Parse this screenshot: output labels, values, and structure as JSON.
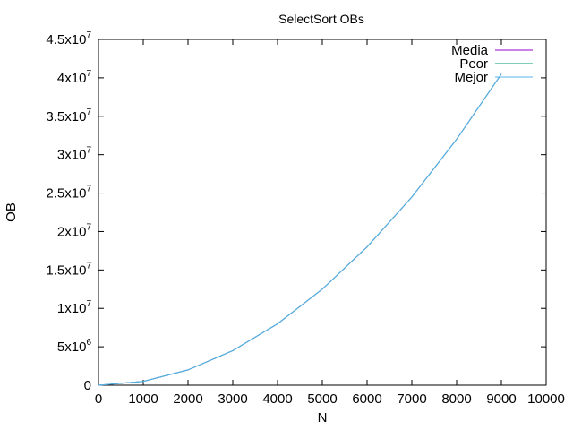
{
  "chart_data": {
    "type": "line",
    "title": "SelectSort OBs",
    "xlabel": "N",
    "ylabel": "OB",
    "xlim": [
      0,
      10000
    ],
    "ylim": [
      0,
      45000000
    ],
    "x_ticks": [
      0,
      1000,
      2000,
      3000,
      4000,
      5000,
      6000,
      7000,
      8000,
      9000,
      10000
    ],
    "y_ticks": [
      {
        "value": 0,
        "mantissa": "0",
        "exp": ""
      },
      {
        "value": 5000000,
        "mantissa": "5x10",
        "exp": "6"
      },
      {
        "value": 10000000,
        "mantissa": "1x10",
        "exp": "7"
      },
      {
        "value": 15000000,
        "mantissa": "1.5x10",
        "exp": "7"
      },
      {
        "value": 20000000,
        "mantissa": "2x10",
        "exp": "7"
      },
      {
        "value": 25000000,
        "mantissa": "2.5x10",
        "exp": "7"
      },
      {
        "value": 30000000,
        "mantissa": "3x10",
        "exp": "7"
      },
      {
        "value": 35000000,
        "mantissa": "3.5x10",
        "exp": "7"
      },
      {
        "value": 40000000,
        "mantissa": "4x10",
        "exp": "7"
      },
      {
        "value": 45000000,
        "mantissa": "4.5x10",
        "exp": "7"
      }
    ],
    "grid": false,
    "legend_position": "top-right",
    "x": [
      0,
      1000,
      2000,
      3000,
      4000,
      5000,
      6000,
      7000,
      8000,
      9000
    ],
    "series": [
      {
        "name": "Media",
        "color": "#9400d3",
        "values": [
          0,
          499500,
          1999000,
          4498500,
          7998000,
          12497500,
          17997000,
          24496500,
          31996000,
          40495500
        ]
      },
      {
        "name": "Peor",
        "color": "#009e73",
        "values": [
          0,
          499500,
          1999000,
          4498500,
          7998000,
          12497500,
          17997000,
          24496500,
          31996000,
          40495500
        ]
      },
      {
        "name": "Mejor",
        "color": "#56b4e9",
        "values": [
          0,
          499500,
          1999000,
          4498500,
          7998000,
          12497500,
          17997000,
          24496500,
          31996000,
          40495500
        ]
      }
    ]
  }
}
